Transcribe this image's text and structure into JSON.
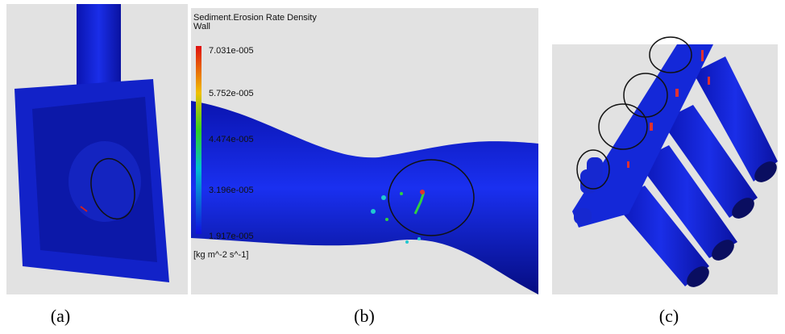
{
  "panel_b": {
    "legend": {
      "title": "Sediment.Erosion Rate Density",
      "subtitle": "Wall",
      "ticks": [
        "7.031e-005",
        "5.752e-005",
        "4.474e-005",
        "3.196e-005",
        "1.917e-005"
      ],
      "unit": "[kg m^-2 s^-1]"
    }
  },
  "captions": [
    "(a)",
    "(b)",
    "(c)"
  ]
}
